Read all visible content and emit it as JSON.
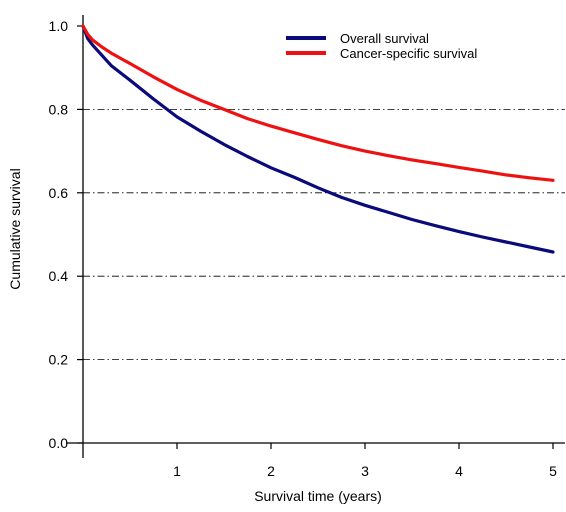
{
  "chart_data": {
    "type": "line",
    "title": "",
    "xlabel": "Survival time (years)",
    "ylabel": "Cumulative survival",
    "xlim": [
      0,
      5
    ],
    "ylim": [
      0,
      1.0
    ],
    "x_ticks": [
      1,
      2,
      3,
      4,
      5
    ],
    "x_tick_labels": [
      "1",
      "2",
      "3",
      "4",
      "5"
    ],
    "y_ticks": [
      0.0,
      0.2,
      0.4,
      0.6,
      0.8,
      1.0
    ],
    "y_tick_labels": [
      "0.0",
      "0.2",
      "0.4",
      "0.6",
      "0.8",
      "1.0"
    ],
    "grid": "horizontal dash-dot at y = 0.2, 0.4, 0.6, 0.8",
    "legend_position": "top-right",
    "series": [
      {
        "name": "Overall survival",
        "color": "#0a0a7a",
        "x": [
          0,
          0.05,
          0.1,
          0.2,
          0.3,
          0.5,
          0.75,
          1.0,
          1.25,
          1.5,
          1.75,
          2.0,
          2.25,
          2.5,
          2.75,
          3.0,
          3.25,
          3.5,
          3.75,
          4.0,
          4.25,
          4.5,
          4.75,
          5.0
        ],
        "y": [
          1.0,
          0.97,
          0.955,
          0.93,
          0.905,
          0.87,
          0.825,
          0.782,
          0.748,
          0.716,
          0.687,
          0.66,
          0.637,
          0.612,
          0.589,
          0.57,
          0.553,
          0.536,
          0.521,
          0.507,
          0.494,
          0.482,
          0.47,
          0.458
        ]
      },
      {
        "name": "Cancer-specific survival",
        "color": "#ee1111",
        "x": [
          0,
          0.05,
          0.1,
          0.2,
          0.3,
          0.5,
          0.75,
          1.0,
          1.25,
          1.5,
          1.75,
          2.0,
          2.25,
          2.5,
          2.75,
          3.0,
          3.25,
          3.5,
          3.75,
          4.0,
          4.25,
          4.5,
          4.75,
          5.0
        ],
        "y": [
          1.0,
          0.98,
          0.967,
          0.95,
          0.935,
          0.91,
          0.878,
          0.848,
          0.822,
          0.8,
          0.778,
          0.76,
          0.744,
          0.728,
          0.713,
          0.7,
          0.689,
          0.679,
          0.67,
          0.661,
          0.652,
          0.643,
          0.636,
          0.63
        ]
      }
    ]
  }
}
